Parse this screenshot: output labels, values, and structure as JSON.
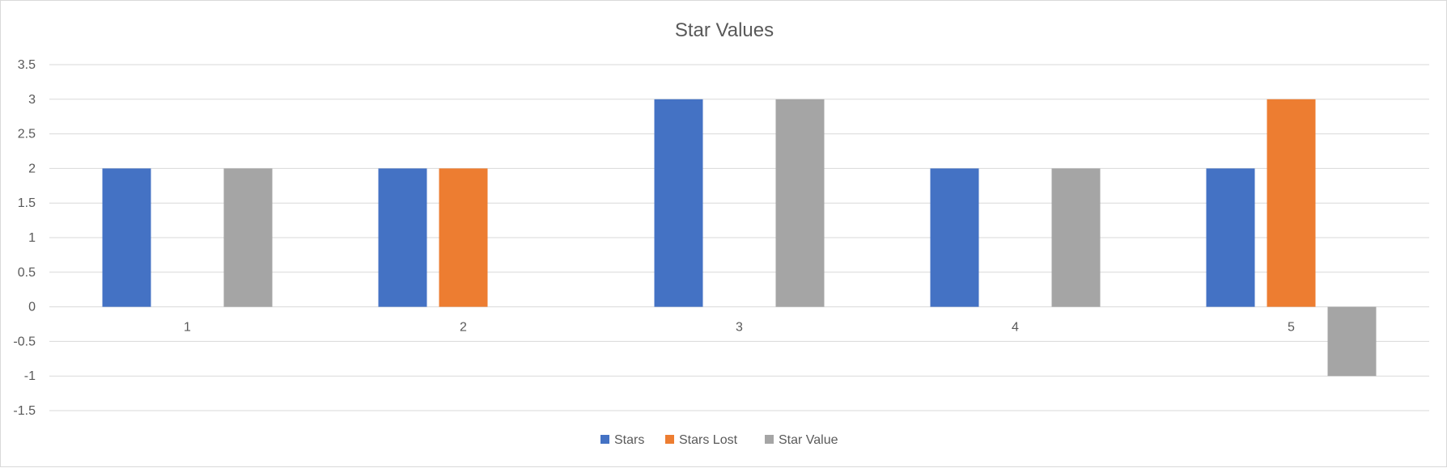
{
  "chart_data": {
    "type": "bar",
    "title": "Star Values",
    "xlabel": "",
    "ylabel": "",
    "categories": [
      "1",
      "2",
      "3",
      "4",
      "5"
    ],
    "series": [
      {
        "name": "Stars",
        "color": "#4472C4",
        "values": [
          2,
          2,
          3,
          2,
          2
        ]
      },
      {
        "name": "Stars Lost",
        "color": "#ED7D31",
        "values": [
          0,
          2,
          0,
          0,
          3
        ]
      },
      {
        "name": "Star Value",
        "color": "#A5A5A5",
        "values": [
          2,
          0,
          3,
          2,
          -1
        ]
      }
    ],
    "ylim": [
      -1.5,
      3.5
    ],
    "yticks": [
      "3.5",
      "3",
      "2.5",
      "2",
      "1.5",
      "1",
      "0.5",
      "0",
      "-0.5",
      "-1",
      "-1.5"
    ],
    "grid": true,
    "legend_position": "bottom-center"
  }
}
